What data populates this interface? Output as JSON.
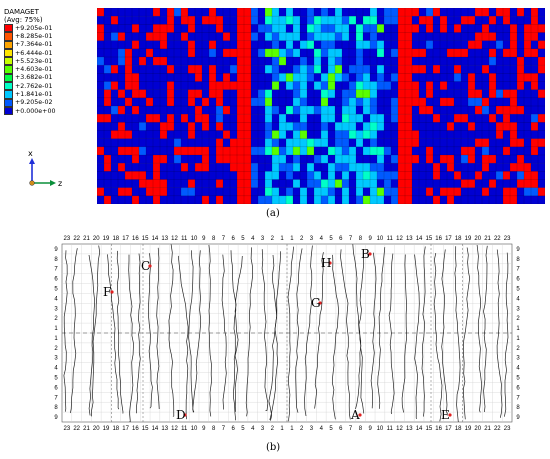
{
  "legend": {
    "title_line1": "DAMAGET",
    "title_line2": "(Avg: 75%)",
    "entries": [
      {
        "label": "+9.205e-01",
        "color": "#ff0000"
      },
      {
        "label": "+8.285e-01",
        "color": "#ff5500"
      },
      {
        "label": "+7.364e-01",
        "color": "#ffa500"
      },
      {
        "label": "+6.444e-01",
        "color": "#ffe600"
      },
      {
        "label": "+5.523e-01",
        "color": "#c8ff00"
      },
      {
        "label": "+4.603e-01",
        "color": "#5aff00"
      },
      {
        "label": "+3.682e-01",
        "color": "#00ff46"
      },
      {
        "label": "+2.762e-01",
        "color": "#00ffc8"
      },
      {
        "label": "+1.841e-01",
        "color": "#00c8ff"
      },
      {
        "label": "+9.205e-02",
        "color": "#005aff"
      },
      {
        "label": "+0.000e+00",
        "color": "#0000d2"
      }
    ]
  },
  "axes": {
    "x": "x",
    "z": "z",
    "x_color": "#1f2fd8",
    "z_color": "#0a8f3a"
  },
  "captions": {
    "a": "(a)",
    "b": "(b)"
  },
  "sketch": {
    "top_numbers": [
      "23",
      "22",
      "21",
      "20",
      "19",
      "18",
      "17",
      "16",
      "15",
      "14",
      "13",
      "12",
      "11",
      "10",
      "9",
      "8",
      "7",
      "6",
      "5",
      "4",
      "3",
      "2",
      "1",
      "1",
      "2",
      "3",
      "4",
      "5",
      "6",
      "7",
      "8",
      "9",
      "10",
      "11",
      "12",
      "13",
      "14",
      "15",
      "16",
      "17",
      "18",
      "19",
      "20",
      "21",
      "22",
      "23"
    ],
    "bottom_numbers": [
      "23",
      "22",
      "21",
      "20",
      "19",
      "18",
      "17",
      "16",
      "15",
      "14",
      "13",
      "12",
      "11",
      "10",
      "9",
      "8",
      "7",
      "6",
      "5",
      "4",
      "3",
      "2",
      "1",
      "1",
      "2",
      "3",
      "4",
      "5",
      "6",
      "7",
      "8",
      "9",
      "10",
      "11",
      "12",
      "13",
      "14",
      "15",
      "16",
      "17",
      "18",
      "19",
      "20",
      "21",
      "22",
      "23"
    ],
    "side_numbers": [
      "9",
      "8",
      "7",
      "6",
      "5",
      "4",
      "3",
      "2",
      "1",
      "1",
      "2",
      "3",
      "4",
      "5",
      "6",
      "7",
      "8",
      "9"
    ],
    "points": [
      {
        "label": "A"
      },
      {
        "label": "B"
      },
      {
        "label": "C"
      },
      {
        "label": "D"
      },
      {
        "label": "E"
      },
      {
        "label": "F"
      },
      {
        "label": "G"
      },
      {
        "label": "H"
      }
    ],
    "marker_color": "#e02020"
  }
}
